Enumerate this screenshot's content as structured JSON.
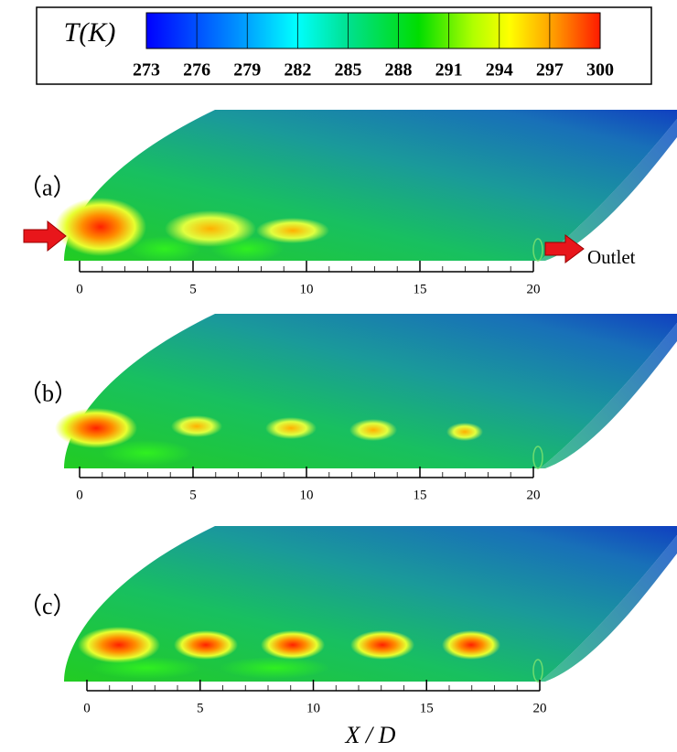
{
  "colorbar": {
    "label": "T(K)",
    "ticks": [
      273,
      276,
      279,
      282,
      285,
      288,
      291,
      294,
      297,
      300
    ]
  },
  "panels": [
    {
      "label": "（a）",
      "ticks": [
        0,
        5,
        10,
        15,
        20
      ]
    },
    {
      "label": "（b）",
      "ticks": [
        0,
        5,
        10,
        15,
        20
      ]
    },
    {
      "label": "（c）",
      "ticks": [
        0,
        5,
        10,
        15,
        20
      ]
    }
  ],
  "annotation": "Outlet",
  "x_label": "X / D"
}
